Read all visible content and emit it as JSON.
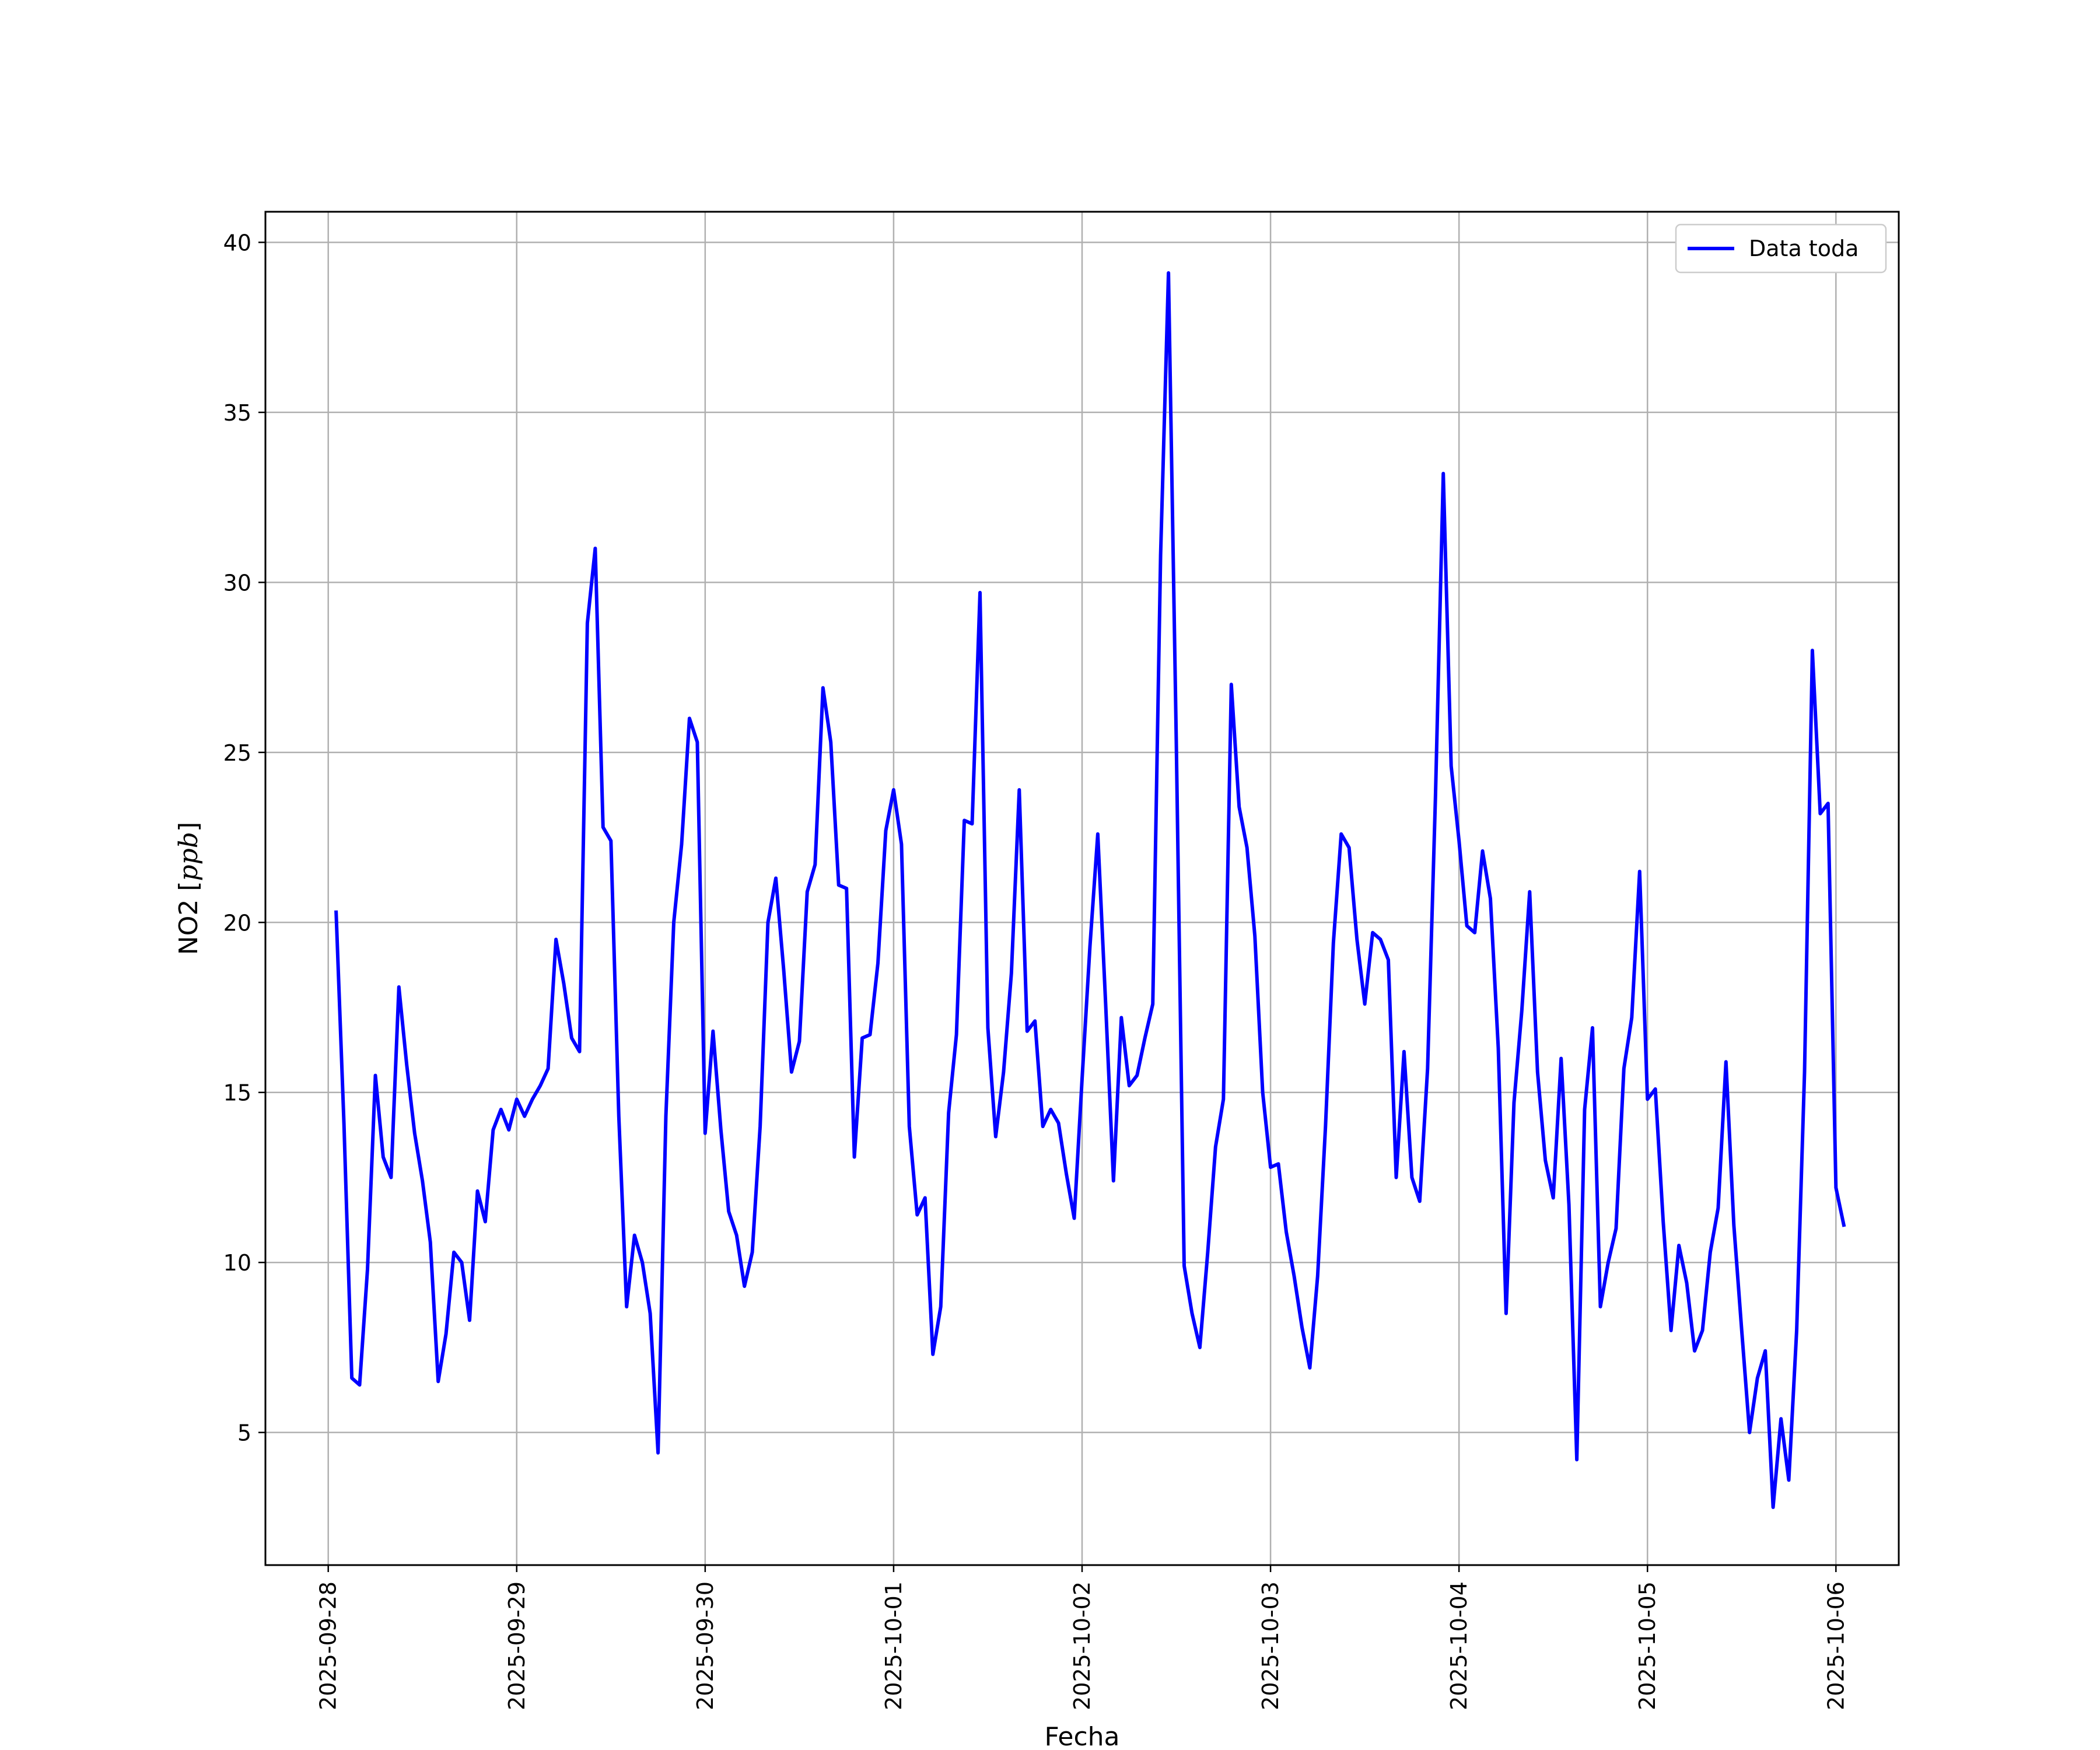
{
  "chart_data": {
    "type": "line",
    "title": "",
    "xlabel": "Fecha",
    "ylabel": "NO2 [",
    "ylabel_unit": "ppb",
    "ylabel_close": "]",
    "x_start": "2025-09-28 00:00",
    "x_step_hours": 1,
    "x_offset_hours": 1,
    "xlim": [
      "2025-09-27 16:00",
      "2025-10-06 08:00"
    ],
    "ylim": [
      1.1,
      40.9
    ],
    "grid": true,
    "legend_position": "upper right",
    "x_tick_labels": [
      "2025-09-28",
      "2025-09-29",
      "2025-09-30",
      "2025-10-01",
      "2025-10-02",
      "2025-10-03",
      "2025-10-04",
      "2025-10-05",
      "2025-10-06"
    ],
    "y_ticks": [
      5,
      10,
      15,
      20,
      25,
      30,
      35,
      40
    ],
    "y_tick_labels": [
      "5",
      "10",
      "15",
      "20",
      "25",
      "30",
      "35",
      "40"
    ],
    "series": [
      {
        "name": "Data toda",
        "color": "#0000ff",
        "values": [
          20.3,
          14.1,
          6.6,
          6.4,
          9.8,
          15.5,
          13.1,
          12.5,
          18.1,
          15.8,
          13.8,
          12.4,
          10.6,
          6.5,
          7.9,
          10.3,
          10.0,
          8.3,
          12.1,
          11.2,
          13.9,
          14.5,
          13.9,
          14.8,
          14.3,
          14.8,
          15.2,
          15.7,
          19.5,
          18.2,
          16.6,
          16.2,
          28.8,
          31.0,
          22.8,
          22.4,
          14.3,
          8.7,
          10.8,
          10.0,
          8.5,
          4.4,
          14.3,
          20.0,
          22.3,
          26.0,
          25.3,
          13.8,
          16.8,
          13.9,
          11.5,
          10.8,
          9.3,
          10.3,
          14.0,
          20.0,
          21.3,
          18.6,
          15.6,
          16.5,
          20.9,
          21.7,
          26.9,
          25.3,
          21.1,
          21.0,
          13.1,
          16.6,
          16.7,
          18.8,
          22.7,
          23.9,
          22.3,
          14.0,
          11.4,
          11.9,
          7.3,
          8.7,
          14.4,
          16.7,
          23.0,
          22.9,
          29.7,
          16.9,
          13.7,
          15.6,
          18.5,
          23.9,
          16.8,
          17.1,
          14.0,
          14.5,
          14.1,
          12.6,
          11.3,
          15.4,
          19.3,
          22.6,
          17.6,
          12.4,
          17.2,
          15.2,
          15.5,
          16.6,
          17.6,
          30.8,
          39.1,
          25.3,
          9.9,
          8.5,
          7.5,
          10.3,
          13.4,
          14.8,
          27.0,
          23.4,
          22.2,
          19.6,
          15.0,
          12.8,
          12.9,
          10.9,
          9.6,
          8.1,
          6.9,
          9.6,
          14.0,
          19.4,
          22.6,
          22.2,
          19.5,
          17.6,
          19.7,
          19.5,
          18.9,
          12.5,
          16.2,
          12.5,
          11.8,
          15.7,
          23.7,
          33.2,
          24.6,
          22.4,
          19.9,
          19.7,
          22.1,
          20.7,
          16.3,
          8.5,
          14.7,
          17.4,
          20.9,
          15.6,
          13.0,
          11.9,
          16.0,
          11.7,
          4.2,
          14.5,
          16.9,
          8.7,
          10.0,
          11.0,
          15.7,
          17.2,
          21.5,
          14.8,
          15.1,
          11.2,
          8.0,
          10.5,
          9.4,
          7.4,
          8.0,
          10.3,
          11.6,
          15.9,
          11.1,
          8.0,
          5.0,
          6.6,
          7.4,
          2.8,
          5.4,
          3.6,
          8.0,
          15.6,
          28.0,
          23.2,
          23.5,
          12.2,
          11.1
        ]
      }
    ]
  }
}
